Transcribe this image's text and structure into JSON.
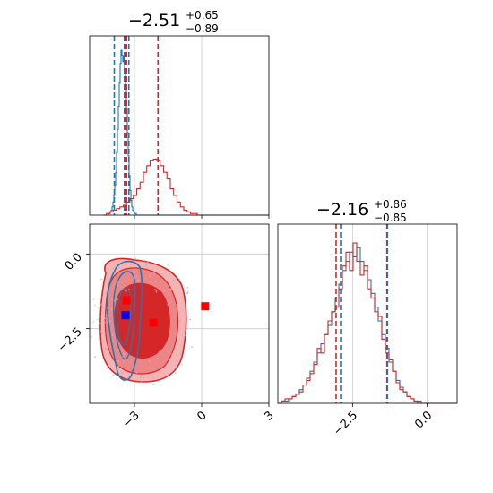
{
  "colors": {
    "blue": "#1f77b4",
    "red": "#d62728",
    "marker_red": "#ff0000",
    "marker_blue": "#0000ff",
    "grid": "#cccccc",
    "fill_light": "#f0a8a8",
    "fill_mid": "#e87070",
    "fill_dark": "#d62728"
  },
  "chart_data": {
    "type": "corner",
    "titles": [
      {
        "value": "−2.51",
        "plus": "+0.65",
        "minus": "−0.89"
      },
      {
        "value": "−2.16",
        "plus": "+0.86",
        "minus": "−0.85"
      }
    ],
    "axes": {
      "param1": {
        "range": [
          -5.0,
          3.0
        ],
        "ticks": [
          -3,
          0,
          3
        ],
        "tick_labels": [
          "−3",
          "0",
          "3"
        ]
      },
      "param2": {
        "range": [
          -5.0,
          1.0
        ],
        "ticks": [
          -2.5,
          0.0
        ],
        "tick_labels": [
          "−2.5",
          "0.0"
        ]
      },
      "y_scatter": {
        "range": [
          -5.0,
          1.0
        ],
        "ticks": [
          0.0,
          -2.5
        ],
        "tick_labels": [
          "0.0",
          "−2.5"
        ]
      }
    },
    "grid": true,
    "marginals": {
      "param1": {
        "series": [
          {
            "color": "blue",
            "bin_edges_start": -4.2,
            "bin_width": 0.04,
            "values": [
              0,
              1,
              1,
              2,
              3,
              5,
              8,
              12,
              18,
              26,
              38,
              52,
              66,
              80,
              92,
              100,
              97,
              93,
              96,
              88,
              78,
              65,
              50,
              36,
              24,
              15,
              9,
              5,
              3,
              2,
              1,
              1,
              0
            ]
          },
          {
            "color": "red",
            "bin_edges_start": -4.4,
            "bin_width": 0.15,
            "values": [
              0,
              1,
              2,
              3,
              4,
              5,
              6,
              8,
              10,
              12,
              16,
              20,
              26,
              30,
              33,
              34,
              33,
              30,
              26,
              22,
              16,
              12,
              8,
              5,
              3,
              2,
              1,
              1,
              0
            ]
          }
        ],
        "quantile_lines": [
          {
            "color": "blue",
            "x": [
              -3.9,
              -3.45,
              -3.25
            ]
          },
          {
            "color": "red",
            "x": [
              -3.4,
              -3.35,
              -1.95
            ]
          }
        ]
      },
      "param2": {
        "series": [
          {
            "color": "blue",
            "bin_edges_start": -5.0,
            "bin_width": 0.12,
            "values": [
              0,
              1,
              1,
              2,
              3,
              4,
              6,
              8,
              11,
              14,
              18,
              22,
              26,
              30,
              34,
              40,
              46,
              52,
              58,
              62,
              66,
              64,
              68,
              62,
              58,
              54,
              48,
              42,
              36,
              30,
              24,
              19,
              14,
              10,
              7,
              5,
              3,
              2,
              1,
              1,
              0
            ]
          },
          {
            "color": "red",
            "bin_edges_start": -5.0,
            "bin_width": 0.12,
            "values": [
              0,
              1,
              2,
              2,
              3,
              4,
              5,
              8,
              10,
              13,
              17,
              24,
              22,
              30,
              36,
              40,
              42,
              50,
              60,
              66,
              58,
              70,
              62,
              56,
              60,
              50,
              46,
              40,
              38,
              28,
              22,
              18,
              14,
              9,
              6,
              5,
              3,
              2,
              1,
              0,
              0
            ]
          }
        ],
        "quantile_lines": [
          {
            "color": "red",
            "x": [
              -3.05,
              -1.35
            ]
          },
          {
            "color": "blue",
            "x": [
              -2.9,
              -1.33
            ]
          }
        ]
      }
    },
    "joint": {
      "markers": [
        {
          "color": "marker_red",
          "x": -3.35,
          "y": -1.55
        },
        {
          "color": "marker_red",
          "x": -2.15,
          "y": -2.3
        },
        {
          "color": "marker_red",
          "x": 0.15,
          "y": -1.75
        },
        {
          "color": "marker_blue",
          "x": -3.4,
          "y": -2.05
        }
      ]
    }
  }
}
